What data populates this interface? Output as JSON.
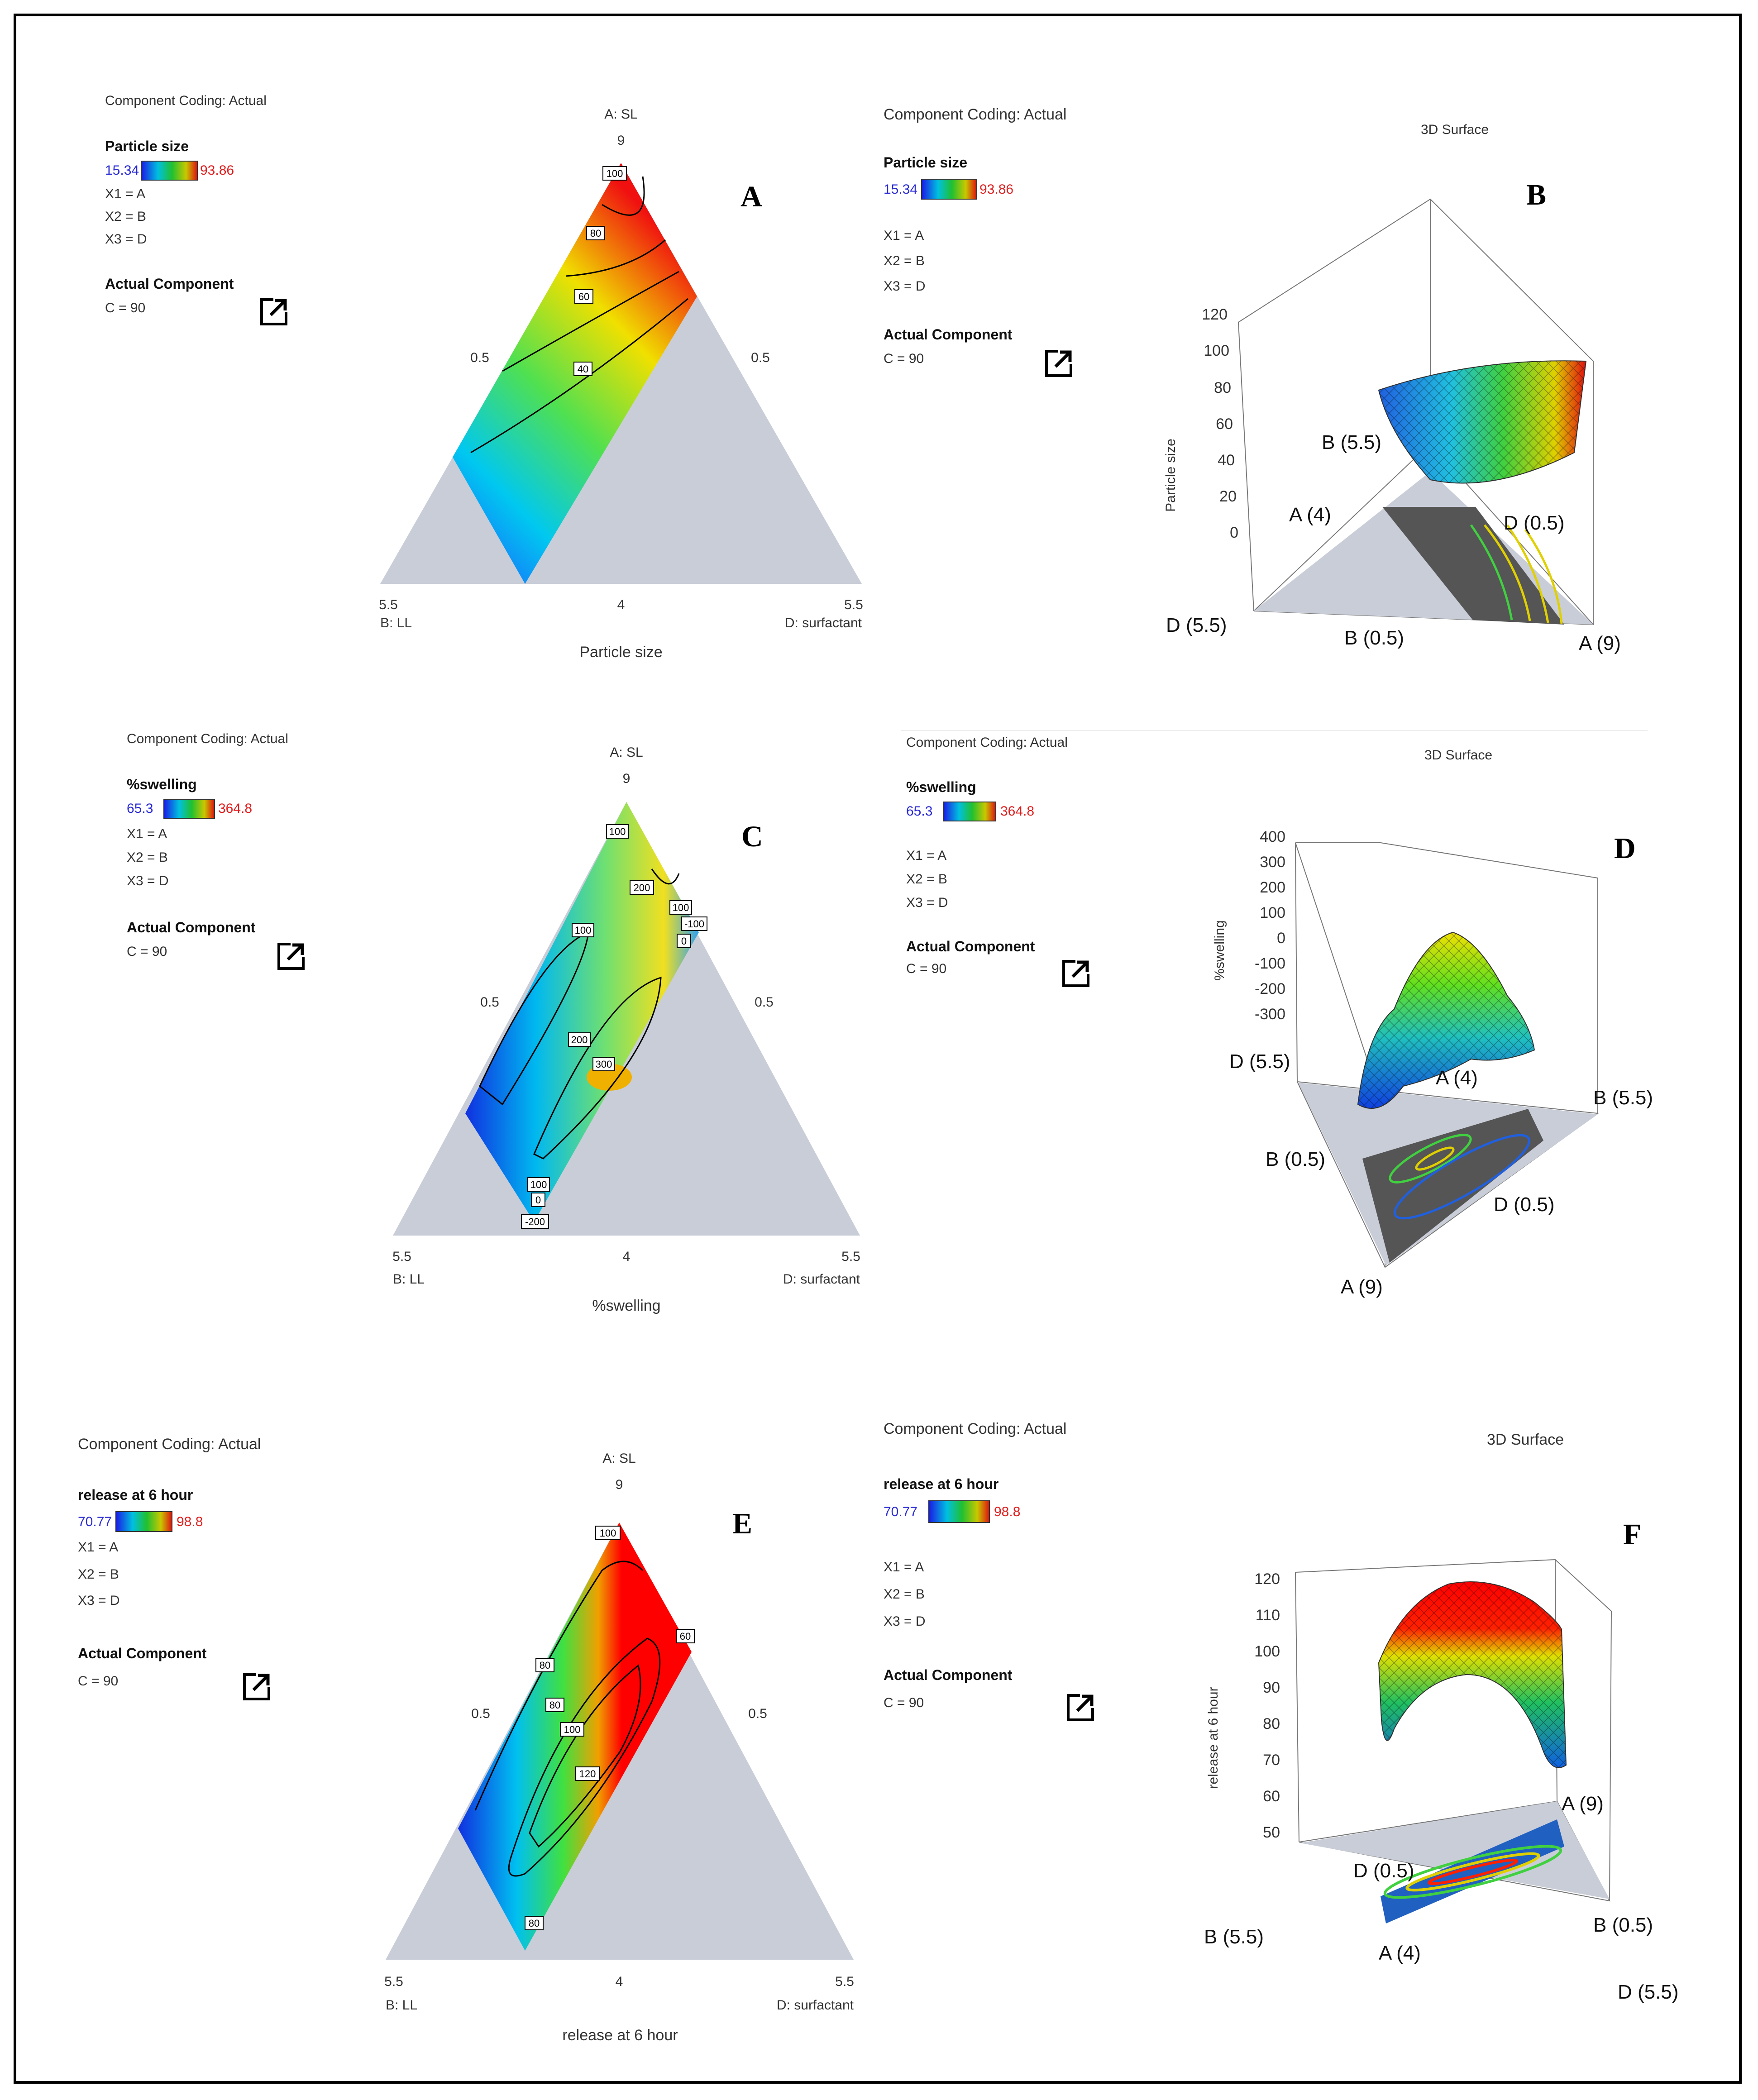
{
  "panels": [
    {
      "letter": "A",
      "coding": "Component Coding: Actual",
      "response": "Particle size",
      "min": "15.34",
      "max": "93.86",
      "x1": "X1 = A",
      "x2": "X2 = B",
      "x3": "X3 = D",
      "actual_title": "Actual Component",
      "actual_value": "C = 90",
      "top_axis": "A: SL",
      "top_value": "9",
      "left_mid": "0.5",
      "right_mid": "0.5",
      "bottom_left": "5.5",
      "bottom_mid": "4",
      "bottom_right": "5.5",
      "bl_name": "B: LL",
      "br_name": "D: surfactant",
      "x_title": "Particle size",
      "contour_labels": [
        "100",
        "80",
        "60",
        "40"
      ]
    },
    {
      "letter": "C",
      "coding": "Component Coding: Actual",
      "response": "%swelling",
      "min": "65.3",
      "max": "364.8",
      "x1": "X1 = A",
      "x2": "X2 = B",
      "x3": "X3 = D",
      "actual_title": "Actual Component",
      "actual_value": "C = 90",
      "top_axis": "A: SL",
      "top_value": "9",
      "left_mid": "0.5",
      "right_mid": "0.5",
      "bottom_left": "5.5",
      "bottom_mid": "4",
      "bottom_right": "5.5",
      "bl_name": "B: LL",
      "br_name": "D: surfactant",
      "x_title": "%swelling",
      "contour_labels": [
        "100",
        "200",
        "100",
        "-100",
        "0",
        "100",
        "200",
        "300",
        "100",
        "0",
        "-200"
      ]
    },
    {
      "letter": "E",
      "coding": "Component Coding: Actual",
      "response": "release at 6 hour",
      "min": "70.77",
      "max": "98.8",
      "x1": "X1 = A",
      "x2": "X2 = B",
      "x3": "X3 = D",
      "actual_title": "Actual Component",
      "actual_value": "C = 90",
      "top_axis": "A: SL",
      "top_value": "9",
      "left_mid": "0.5",
      "right_mid": "0.5",
      "bottom_left": "5.5",
      "bottom_mid": "4",
      "bottom_right": "5.5",
      "bl_name": "B: LL",
      "br_name": "D: surfactant",
      "x_title": "release at 6 hour",
      "contour_labels": [
        "100",
        "60",
        "80",
        "80",
        "100",
        "120",
        "80"
      ]
    }
  ],
  "surfaces": [
    {
      "letter": "B",
      "coding": "Component Coding: Actual",
      "response": "Particle size",
      "min": "15.34",
      "max": "93.86",
      "x1": "X1 = A",
      "x2": "X2 = B",
      "x3": "X3 = D",
      "actual_title": "Actual Component",
      "actual_value": "C = 90",
      "title": "3D Surface",
      "ylabel": "Particle size",
      "ticks": [
        "120",
        "100",
        "80",
        "60",
        "40",
        "20",
        "0"
      ],
      "corner_labels": [
        "B (5.5)",
        "A (4)",
        "D (0.5)",
        "D (5.5)",
        "B (0.5)",
        "A (9)"
      ]
    },
    {
      "letter": "D",
      "coding": "Component Coding: Actual",
      "response": "%swelling",
      "min": "65.3",
      "max": "364.8",
      "x1": "X1 = A",
      "x2": "X2 = B",
      "x3": "X3 = D",
      "actual_title": "Actual Component",
      "actual_value": "C = 90",
      "title": "3D Surface",
      "ylabel": "%swelling",
      "ticks": [
        "400",
        "300",
        "200",
        "100",
        "0",
        "-100",
        "-200",
        "-300"
      ],
      "corner_labels": [
        "D (5.5)",
        "A (4)",
        "B (5.5)",
        "B (0.5)",
        "D (0.5)",
        "A (9)"
      ]
    },
    {
      "letter": "F",
      "coding": "Component Coding: Actual",
      "response": "release at 6 hour",
      "min": "70.77",
      "max": "98.8",
      "x1": "X1 = A",
      "x2": "X2 = B",
      "x3": "X3 = D",
      "actual_title": "Actual Component",
      "actual_value": "C = 90",
      "title": "3D Surface",
      "ylabel": "release at 6 hour",
      "ticks": [
        "120",
        "110",
        "100",
        "90",
        "80",
        "70",
        "60",
        "50"
      ],
      "corner_labels": [
        "D (0.5)",
        "A (9)",
        "B (5.5)",
        "B (0.5)",
        "A (4)",
        "D (5.5)"
      ]
    }
  ],
  "colors": {
    "gray_region": "#c9cdd8",
    "low": "#2b2bd6",
    "high": "#e02020"
  },
  "chart_data": [
    {
      "type": "heatmap",
      "panel": "A",
      "title": "Particle size",
      "subtitle": "Component Coding: Actual",
      "components": {
        "top": "A: SL",
        "left": "B: LL",
        "right": "D: surfactant"
      },
      "range": [
        15.34,
        93.86
      ],
      "contour_levels": [
        100,
        80,
        60,
        40
      ],
      "fixed_component": "C = 90"
    },
    {
      "type": "heatmap",
      "panel": "C",
      "title": "%swelling",
      "subtitle": "Component Coding: Actual",
      "components": {
        "top": "A: SL",
        "left": "B: LL",
        "right": "D: surfactant"
      },
      "range": [
        65.3,
        364.8
      ],
      "contour_levels": [
        -200,
        -100,
        0,
        100,
        200,
        300
      ],
      "fixed_component": "C = 90"
    },
    {
      "type": "heatmap",
      "panel": "E",
      "title": "release at 6 hour",
      "subtitle": "Component Coding: Actual",
      "components": {
        "top": "A: SL",
        "left": "B: LL",
        "right": "D: surfactant"
      },
      "range": [
        70.77,
        98.8
      ],
      "contour_levels": [
        60,
        80,
        100,
        120
      ],
      "fixed_component": "C = 90"
    },
    {
      "type": "area",
      "panel": "B",
      "title": "3D Surface",
      "zlabel": "Particle size",
      "zlim": [
        0,
        120
      ]
    },
    {
      "type": "area",
      "panel": "D",
      "title": "3D Surface",
      "zlabel": "%swelling",
      "zlim": [
        -300,
        400
      ]
    },
    {
      "type": "area",
      "panel": "F",
      "title": "3D Surface",
      "zlabel": "release at 6 hour",
      "zlim": [
        50,
        120
      ]
    }
  ]
}
